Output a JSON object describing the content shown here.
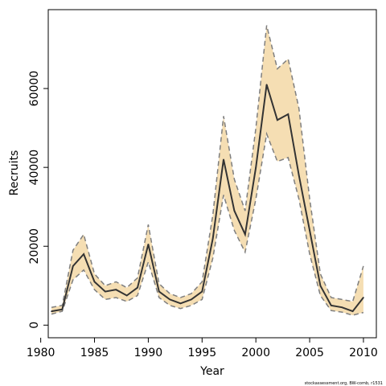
{
  "chart_data": {
    "type": "line",
    "xlabel": "Year",
    "ylabel": "Recruits",
    "xlim": [
      1980.7,
      2011.2
    ],
    "ylim": [
      -3200,
      80000
    ],
    "x_ticks": [
      1980,
      1985,
      1990,
      1995,
      2000,
      2005,
      2010
    ],
    "y_ticks": [
      0,
      20000,
      40000,
      60000
    ],
    "x": [
      1981,
      1982,
      1983,
      1984,
      1985,
      1986,
      1987,
      1988,
      1989,
      1990,
      1991,
      1992,
      1993,
      1994,
      1995,
      1996,
      1997,
      1998,
      1999,
      2000,
      2001,
      2002,
      2003,
      2004,
      2005,
      2006,
      2007,
      2008,
      2009,
      2010
    ],
    "series": [
      {
        "values": [
          3500,
          4000,
          15000,
          18000,
          11000,
          8500,
          9000,
          7500,
          9500,
          20500,
          8500,
          6500,
          5500,
          6500,
          8500,
          22000,
          42000,
          29000,
          23000,
          40000,
          61000,
          52000,
          53500,
          38000,
          24000,
          10000,
          5000,
          4500,
          3500,
          7000
        ]
      },
      {
        "values": [
          4500,
          5000,
          19000,
          23000,
          13000,
          10000,
          11000,
          9500,
          12000,
          25500,
          10500,
          8000,
          7000,
          8000,
          11000,
          28000,
          53000,
          37000,
          29000,
          50000,
          76000,
          65000,
          67500,
          55000,
          32000,
          13000,
          7000,
          6500,
          6000,
          15000
        ]
      },
      {
        "values": [
          2800,
          3500,
          11500,
          14000,
          9000,
          6500,
          7000,
          6000,
          7500,
          16000,
          7000,
          5000,
          4200,
          5000,
          6500,
          17000,
          33000,
          24000,
          18500,
          32000,
          48500,
          41500,
          42500,
          32000,
          18000,
          7500,
          3700,
          3300,
          2500,
          3200
        ]
      }
    ],
    "ribbon_color": "#f5deb3",
    "line_color": "#333333",
    "bound_color": "#7f7f7f"
  },
  "credit": "stockassessment.org, BW-comb, r1531"
}
